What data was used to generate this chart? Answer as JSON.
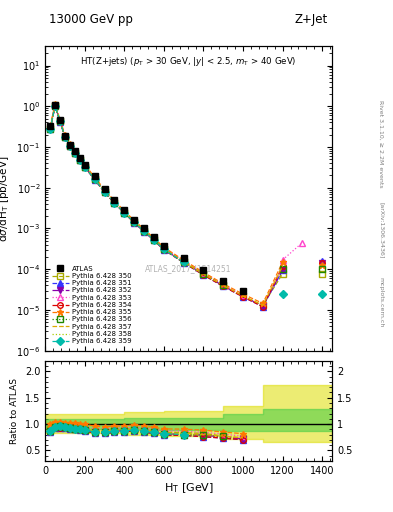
{
  "title_top": "13000 GeV pp",
  "title_right": "Z+Jet",
  "annotation": "HT(Z+jets) (p$_T$ > 30 GeV, |y| < 2.5, m$_T$ > 40 GeV)",
  "watermark": "ATLAS_2017_I1514251",
  "ylabel_main": "dσ/dH$_T$ [pb/GeV]",
  "ylabel_ratio": "Ratio to ATLAS",
  "xlabel": "H$_T$ [GeV]",
  "right_label": "Rivet 3.1.10, ≥ 2.2M events",
  "arxiv_label": "[arXiv:1306.3436]",
  "mcplots_label": "mcplots.cern.ch",
  "ht_bins": [
    25,
    50,
    75,
    100,
    125,
    150,
    175,
    200,
    250,
    300,
    350,
    400,
    450,
    500,
    550,
    600,
    700,
    800,
    900,
    1000,
    1100,
    1200,
    1300,
    1400
  ],
  "atlas_values": [
    0.32,
    1.1,
    0.45,
    0.19,
    0.115,
    0.078,
    0.053,
    0.037,
    0.019,
    0.0095,
    0.005,
    0.0028,
    0.0016,
    0.001,
    0.00062,
    0.00038,
    0.000185,
    9.5e-05,
    5.2e-05,
    3e-05,
    null,
    null,
    null,
    null
  ],
  "series": [
    {
      "label": "Pythia 6.428 350",
      "color": "#aaaa00",
      "linestyle": "--",
      "marker": "s",
      "markerfacecolor": "none",
      "values": [
        0.29,
        1.05,
        0.44,
        0.18,
        0.107,
        0.072,
        0.049,
        0.033,
        0.0165,
        0.0082,
        0.0044,
        0.0025,
        0.00145,
        0.00088,
        0.00054,
        0.00032,
        0.000155,
        7.8e-05,
        4e-05,
        2.2e-05,
        1.3e-05,
        7.8e-05,
        null,
        7.5e-05
      ]
    },
    {
      "label": "Pythia 6.428 351",
      "color": "#3333ff",
      "linestyle": "--",
      "marker": "^",
      "markerfacecolor": "#3333ff",
      "values": [
        0.27,
        1.02,
        0.42,
        0.176,
        0.104,
        0.07,
        0.047,
        0.032,
        0.0158,
        0.0078,
        0.0042,
        0.0024,
        0.00138,
        0.00084,
        0.00051,
        0.0003,
        0.000145,
        7.2e-05,
        3.8e-05,
        2.1e-05,
        1.2e-05,
        9.5e-05,
        null,
        0.000155
      ]
    },
    {
      "label": "Pythia 6.428 352",
      "color": "#8800aa",
      "linestyle": "-.",
      "marker": "v",
      "markerfacecolor": "#8800aa",
      "values": [
        0.275,
        1.03,
        0.43,
        0.178,
        0.106,
        0.071,
        0.048,
        0.0325,
        0.0162,
        0.008,
        0.0043,
        0.00245,
        0.00141,
        0.00086,
        0.00052,
        0.00031,
        0.000148,
        7.5e-05,
        3.9e-05,
        2.15e-05,
        1.25e-05,
        9.8e-05,
        null,
        0.00014
      ]
    },
    {
      "label": "Pythia 6.428 353",
      "color": "#ff44cc",
      "linestyle": ":",
      "marker": "^",
      "markerfacecolor": "none",
      "values": [
        0.3,
        1.08,
        0.455,
        0.188,
        0.112,
        0.075,
        0.051,
        0.035,
        0.0173,
        0.0086,
        0.0046,
        0.0026,
        0.0015,
        0.00092,
        0.00056,
        0.00033,
        0.00016,
        8e-05,
        4.2e-05,
        2.3e-05,
        null,
        0.00017,
        0.00045,
        null
      ]
    },
    {
      "label": "Pythia 6.428 354",
      "color": "#dd0000",
      "linestyle": "--",
      "marker": "o",
      "markerfacecolor": "none",
      "values": [
        0.27,
        1.02,
        0.42,
        0.175,
        0.104,
        0.07,
        0.047,
        0.032,
        0.0158,
        0.0078,
        0.0042,
        0.0024,
        0.00138,
        0.00084,
        0.00051,
        0.0003,
        0.000145,
        7.2e-05,
        3.8e-05,
        2.1e-05,
        1.2e-05,
        0.00012,
        null,
        0.00014
      ]
    },
    {
      "label": "Pythia 6.428 355",
      "color": "#ff7700",
      "linestyle": "--",
      "marker": "*",
      "markerfacecolor": "#ff7700",
      "values": [
        0.32,
        1.15,
        0.47,
        0.195,
        0.117,
        0.079,
        0.053,
        0.037,
        0.0182,
        0.009,
        0.0048,
        0.0027,
        0.00158,
        0.00096,
        0.00058,
        0.000345,
        0.000167,
        8.4e-05,
        4.4e-05,
        2.45e-05,
        1.45e-05,
        0.00015,
        null,
        0.00013
      ]
    },
    {
      "label": "Pythia 6.428 356",
      "color": "#228800",
      "linestyle": ":",
      "marker": "s",
      "markerfacecolor": "none",
      "values": [
        0.275,
        1.03,
        0.43,
        0.178,
        0.106,
        0.071,
        0.048,
        0.0325,
        0.0162,
        0.008,
        0.0043,
        0.00245,
        0.00141,
        0.00086,
        0.00052,
        0.00031,
        0.000148,
        7.5e-05,
        4e-05,
        null,
        null,
        0.0001,
        null,
        0.0001
      ]
    },
    {
      "label": "Pythia 6.428 357",
      "color": "#ddaa00",
      "linestyle": "--",
      "marker": null,
      "markerfacecolor": "#ddaa00",
      "values": [
        0.285,
        1.06,
        0.435,
        0.181,
        0.108,
        0.072,
        0.049,
        0.0335,
        0.0165,
        0.0082,
        0.0044,
        0.0025,
        0.00145,
        0.00088,
        0.00053,
        0.000315,
        0.000152,
        7.6e-05,
        4e-05,
        2.2e-05,
        1.3e-05,
        0.00012,
        null,
        0.00012
      ]
    },
    {
      "label": "Pythia 6.428 358",
      "color": "#aacc00",
      "linestyle": ":",
      "marker": null,
      "markerfacecolor": "#aacc00",
      "values": [
        0.275,
        1.03,
        0.43,
        0.178,
        0.106,
        0.071,
        0.048,
        0.0325,
        0.0162,
        0.008,
        0.0043,
        0.00245,
        0.00141,
        0.00086,
        0.00052,
        0.00031,
        0.000148,
        7.5e-05,
        null,
        null,
        null,
        null,
        null,
        null
      ]
    },
    {
      "label": "Pythia 6.428 359",
      "color": "#00bbaa",
      "linestyle": "--",
      "marker": "D",
      "markerfacecolor": "#00bbaa",
      "values": [
        0.275,
        1.03,
        0.43,
        0.178,
        0.106,
        0.071,
        0.048,
        0.0325,
        0.0162,
        0.008,
        0.0043,
        0.00245,
        0.00141,
        0.00086,
        0.00052,
        0.00031,
        0.000148,
        null,
        null,
        null,
        null,
        2.5e-05,
        null,
        2.5e-05
      ]
    }
  ],
  "band_inner_color": "#44cc44",
  "band_outer_color": "#dddd00",
  "band_inner_alpha": 0.55,
  "band_outer_alpha": 0.55,
  "ylim_main": [
    1e-06,
    30
  ],
  "ylim_ratio": [
    0.3,
    2.2
  ],
  "xlim": [
    0,
    1450
  ],
  "ratio_yticks": [
    0.5,
    1.0,
    1.5,
    2.0
  ],
  "band_outer_x": [
    0,
    100,
    200,
    400,
    600,
    900,
    1100,
    1450
  ],
  "band_outer_lo": [
    0.82,
    0.82,
    0.82,
    0.8,
    0.78,
    0.72,
    0.65,
    0.65
  ],
  "band_outer_hi": [
    1.2,
    1.2,
    1.2,
    1.22,
    1.25,
    1.35,
    1.75,
    1.75
  ],
  "band_inner_x": [
    0,
    100,
    200,
    400,
    600,
    900,
    1100,
    1450
  ],
  "band_inner_lo": [
    0.9,
    0.9,
    0.9,
    0.89,
    0.88,
    0.86,
    0.86,
    0.86
  ],
  "band_inner_hi": [
    1.1,
    1.1,
    1.1,
    1.11,
    1.12,
    1.2,
    1.28,
    1.28
  ]
}
